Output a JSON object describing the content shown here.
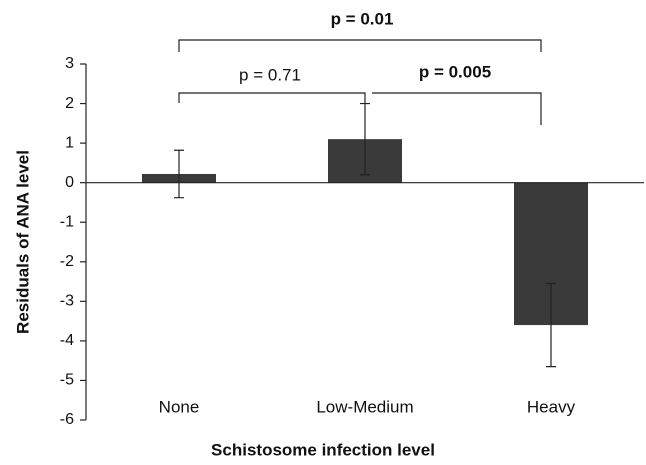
{
  "chart_data": {
    "type": "bar",
    "x_label": "Schistosome infection level",
    "y_label": "Residuals of ANA level",
    "categories": [
      "None",
      "Low-Medium",
      "Heavy"
    ],
    "values": [
      0.22,
      1.1,
      -3.6
    ],
    "errors": [
      0.6,
      0.9,
      1.05
    ],
    "color": "#3a3a3a",
    "ylim": [
      -6,
      3
    ],
    "yticks": [
      -6,
      -5,
      -4,
      -3,
      -2,
      -1,
      0,
      1,
      2,
      3
    ],
    "grid": false,
    "annotations": [
      {
        "text": "p = 0.71",
        "bold": false
      },
      {
        "text": "p = 0.005",
        "bold": true
      },
      {
        "text": "p = 0.01",
        "bold": true
      }
    ]
  }
}
